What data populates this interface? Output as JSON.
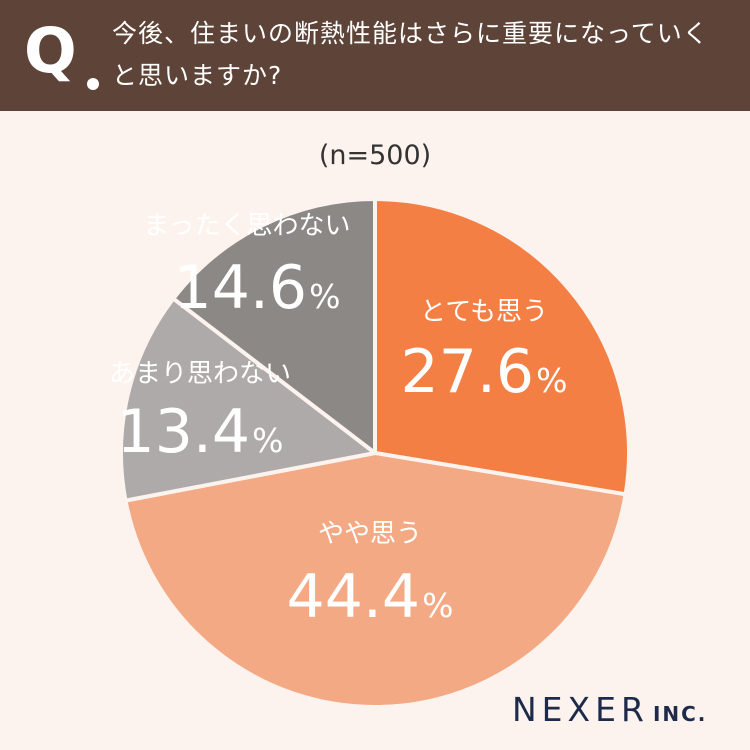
{
  "header": {
    "q_mark": "Q",
    "question": "今後、住まいの断熱性能はさらに重要になっていくと思いますか?"
  },
  "sample_size": "(n=500)",
  "chart_data": {
    "type": "pie",
    "start_angle_deg": 0,
    "direction": "clockwise",
    "slices": [
      {
        "label": "とても思う",
        "value": 27.6,
        "value_text": "27.6",
        "unit": "%",
        "color": "#f37f44",
        "text_color": "#ffffff"
      },
      {
        "label": "やや思う",
        "value": 44.4,
        "value_text": "44.4",
        "unit": "%",
        "color": "#f4a985",
        "text_color": "#ffffff"
      },
      {
        "label": "あまり思わない",
        "value": 13.4,
        "value_text": "13.4",
        "unit": "%",
        "color": "#adaaa9",
        "text_color": "#ffffff"
      },
      {
        "label": "まったく思わない",
        "value": 14.6,
        "value_text": "14.6",
        "unit": "%",
        "color": "#8b8886",
        "text_color": "#ffffff"
      }
    ]
  },
  "logo": {
    "main": "NEXER",
    "sub": "INC."
  },
  "colors": {
    "header_bg": "#5e4438",
    "page_bg": "#fdf3ee",
    "logo": "#1d2a4a"
  }
}
